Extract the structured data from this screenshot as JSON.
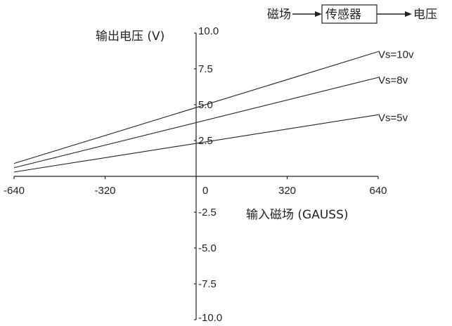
{
  "chart_data": {
    "type": "line",
    "xlabel": "输入磁场 (GAUSS)",
    "ylabel": "输出电压 (V)",
    "xlim": [
      -640,
      640
    ],
    "ylim": [
      -10,
      10
    ],
    "x_ticks": [
      "-640",
      "-320",
      "0",
      "320",
      "640"
    ],
    "y_ticks": [
      "10.0",
      "7.5",
      "5.0",
      "2.5",
      "-2.5",
      "-5.0",
      "-7.5",
      "-10.0"
    ],
    "series": [
      {
        "name": "Vs=10v",
        "x": [
          -640,
          640
        ],
        "y": [
          0.9,
          8.7
        ]
      },
      {
        "name": "Vs=8v",
        "x": [
          -640,
          640
        ],
        "y": [
          0.6,
          6.9
        ]
      },
      {
        "name": "Vs=5v",
        "x": [
          -640,
          640
        ],
        "y": [
          0.3,
          4.3
        ]
      }
    ],
    "grid": false
  },
  "diagram": {
    "input": "磁场",
    "block": "传感器",
    "output": "电压"
  }
}
